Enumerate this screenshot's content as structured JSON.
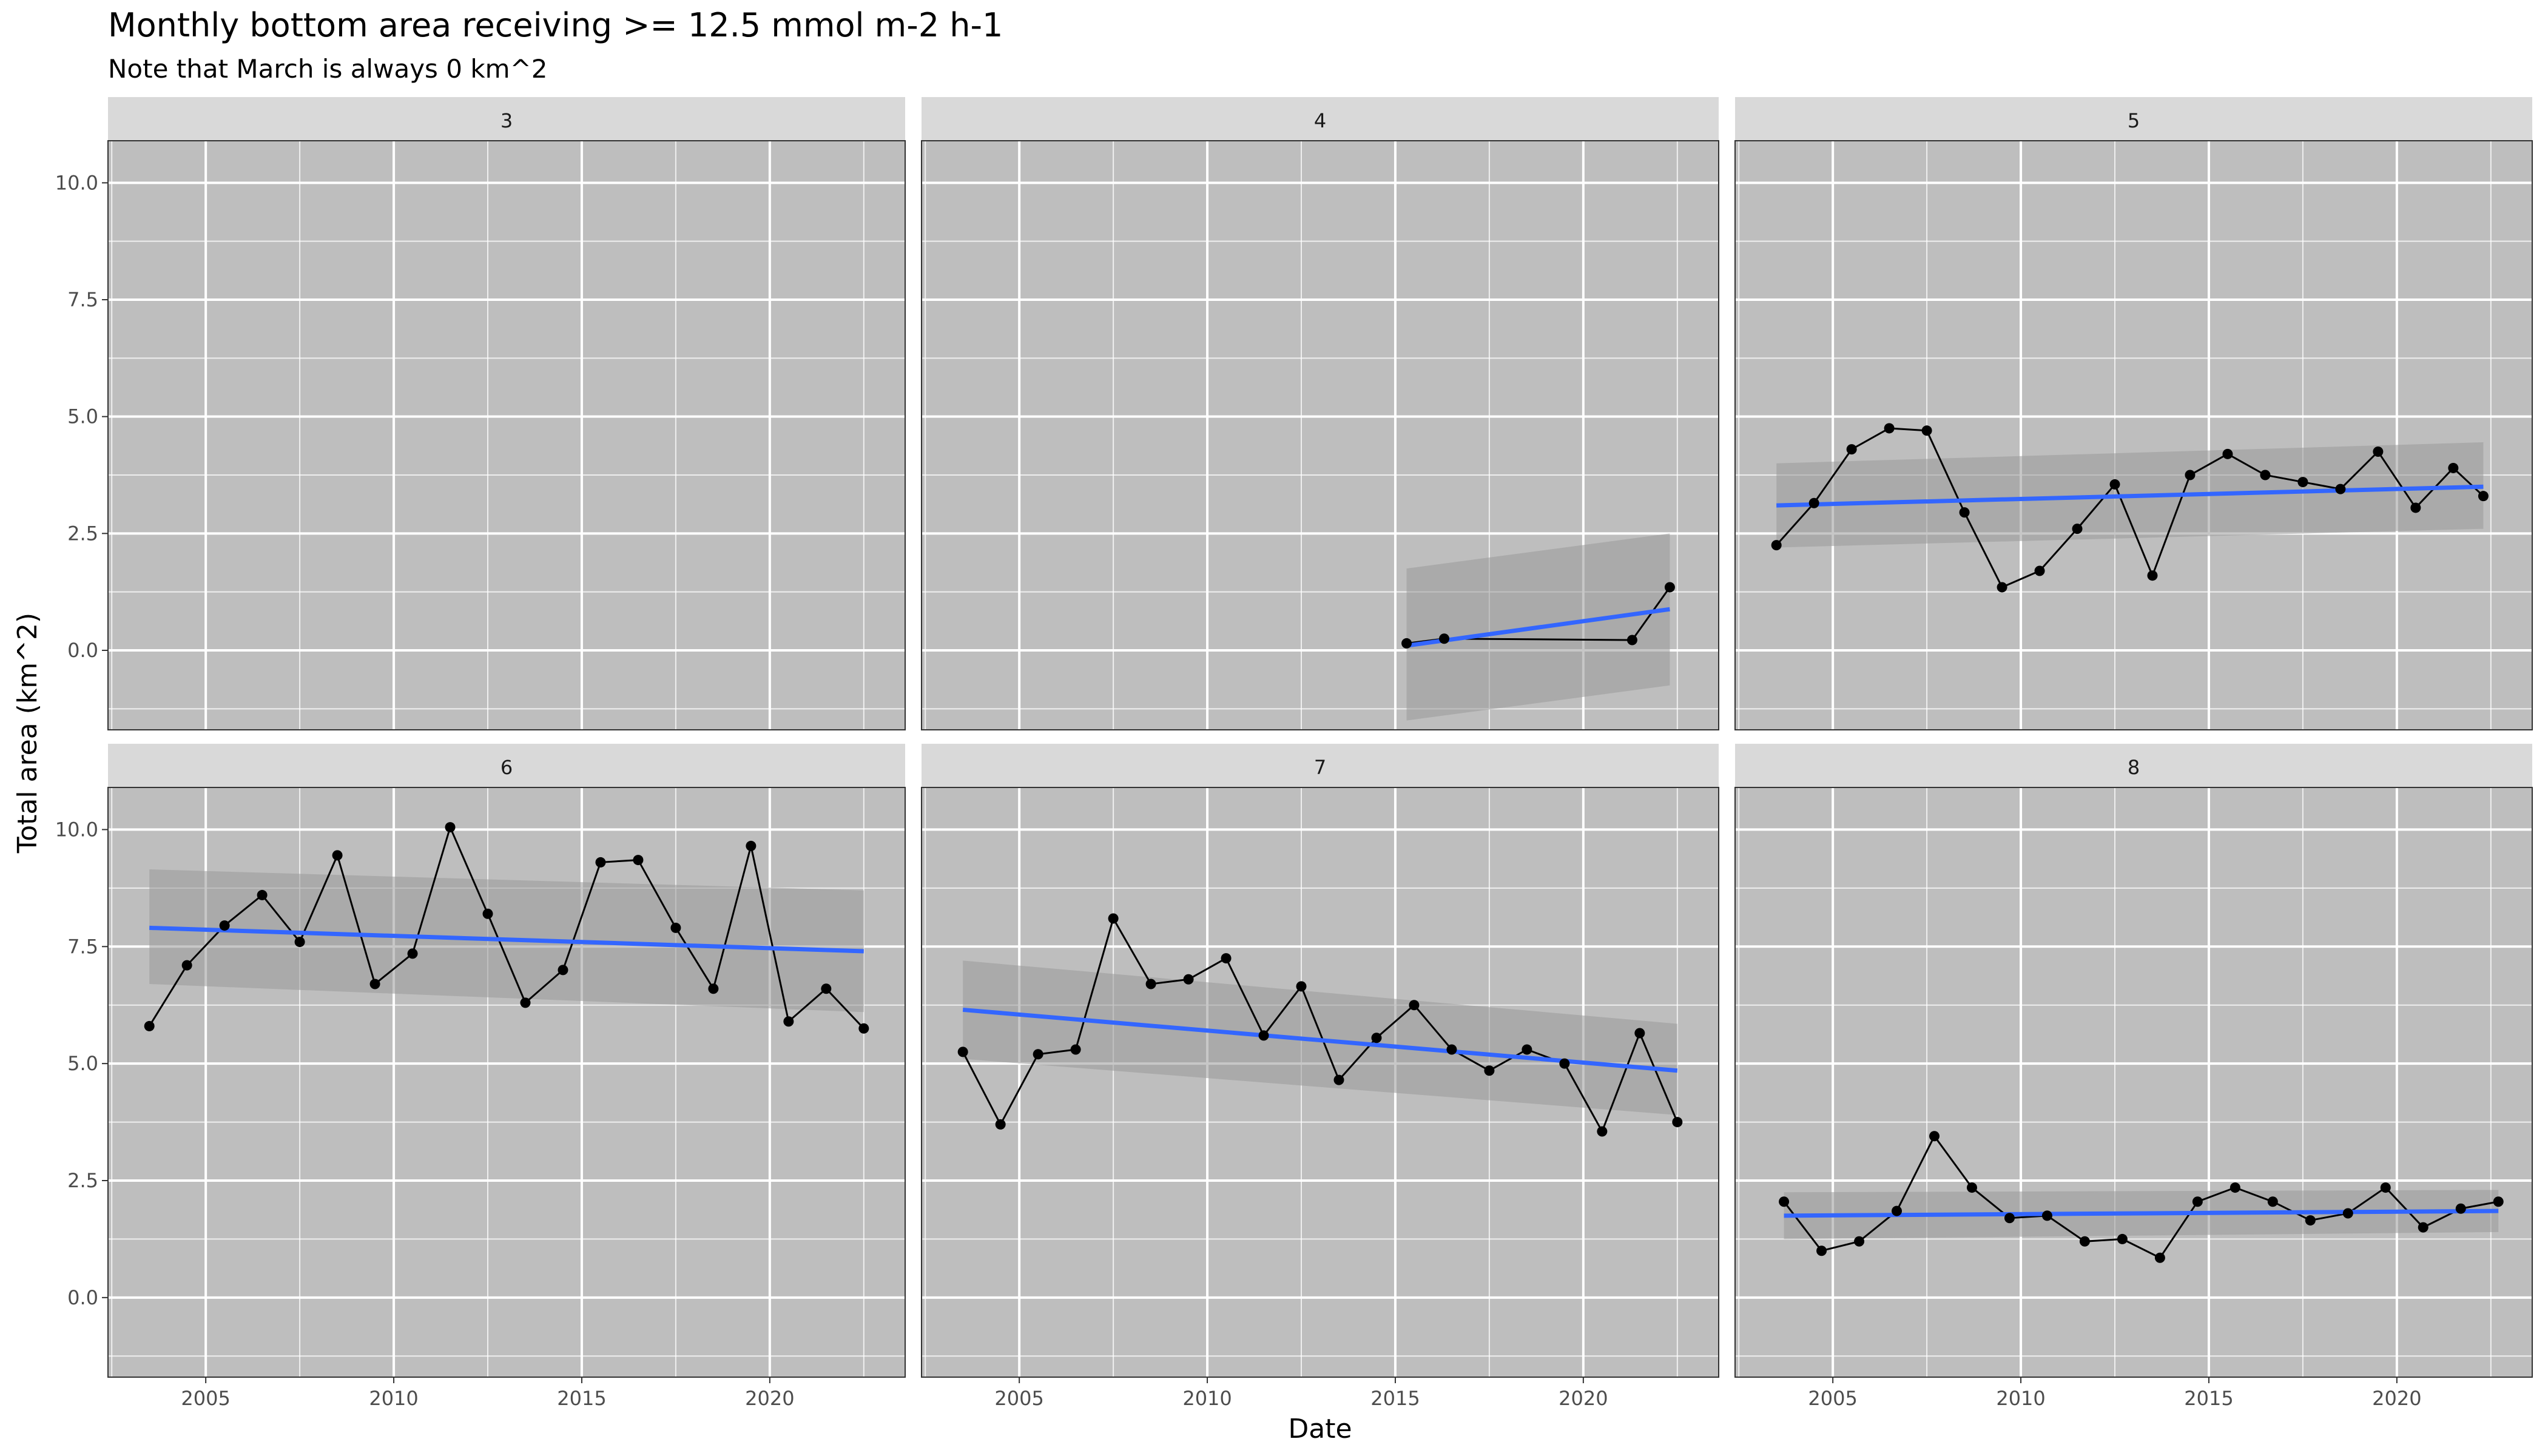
{
  "chart_data": {
    "type": "line",
    "title": "Monthly bottom area receiving >= 12.5 mmol m-2 h-1",
    "subtitle": "Note that March is always 0 km^2",
    "xlabel": "Date",
    "ylabel": "Total area (km^2)",
    "xlim": [
      2002.4,
      2023.6
    ],
    "ylim": [
      -1.7,
      10.9
    ],
    "x_ticks": [
      2005,
      2010,
      2015,
      2020
    ],
    "y_ticks": [
      0.0,
      2.5,
      5.0,
      7.5,
      10.0
    ],
    "x_tick_labels": [
      "2005",
      "2010",
      "2015",
      "2020"
    ],
    "y_tick_labels": [
      "0.0",
      "2.5",
      "5.0",
      "7.5",
      "10.0"
    ],
    "grid": true,
    "trend_color": "#3366ff",
    "panel_background": "#bebebe",
    "strip_background": "#d9d9d9",
    "panels": [
      {
        "label": "3",
        "x": [],
        "y": [],
        "trend": null
      },
      {
        "label": "4",
        "x": [
          2015.3,
          2016.3,
          2021.3,
          2022.3
        ],
        "y": [
          0.15,
          0.25,
          0.22,
          1.35
        ],
        "trend": {
          "x": [
            2015.3,
            2022.3
          ],
          "y": [
            0.1,
            0.88
          ],
          "ci_low": [
            -1.5,
            -0.75
          ],
          "ci_high": [
            1.75,
            2.5
          ]
        }
      },
      {
        "label": "5",
        "x": [
          2003.5,
          2004.5,
          2005.5,
          2006.5,
          2007.5,
          2008.5,
          2009.5,
          2010.5,
          2011.5,
          2012.5,
          2013.5,
          2014.5,
          2015.5,
          2016.5,
          2017.5,
          2018.5,
          2019.5,
          2020.5,
          2021.5,
          2022.3
        ],
        "y": [
          2.25,
          3.15,
          4.3,
          4.75,
          4.7,
          2.95,
          1.35,
          1.7,
          2.6,
          3.55,
          1.6,
          3.75,
          4.2,
          3.75,
          3.6,
          3.45,
          4.25,
          3.05,
          3.9,
          3.3
        ],
        "trend": {
          "x": [
            2003.5,
            2022.3
          ],
          "y": [
            3.1,
            3.5
          ],
          "ci_low": [
            2.2,
            2.6
          ],
          "ci_high": [
            4.0,
            4.45
          ]
        }
      },
      {
        "label": "6",
        "x": [
          2003.5,
          2004.5,
          2005.5,
          2006.5,
          2007.5,
          2008.5,
          2009.5,
          2010.5,
          2011.5,
          2012.5,
          2013.5,
          2014.5,
          2015.5,
          2016.5,
          2017.5,
          2018.5,
          2019.5,
          2020.5,
          2021.5,
          2022.5
        ],
        "y": [
          5.8,
          7.1,
          7.95,
          8.6,
          7.6,
          9.45,
          6.7,
          7.35,
          10.05,
          8.2,
          6.3,
          7.0,
          9.3,
          9.35,
          7.9,
          6.6,
          9.65,
          5.9,
          6.6,
          5.75
        ],
        "trend": {
          "x": [
            2003.5,
            2022.5
          ],
          "y": [
            7.9,
            7.4
          ],
          "ci_low": [
            6.7,
            6.1
          ],
          "ci_high": [
            9.15,
            8.7
          ]
        }
      },
      {
        "label": "7",
        "x": [
          2003.5,
          2004.5,
          2005.5,
          2006.5,
          2007.5,
          2008.5,
          2009.5,
          2010.5,
          2011.5,
          2012.5,
          2013.5,
          2014.5,
          2015.5,
          2016.5,
          2017.5,
          2018.5,
          2019.5,
          2020.5,
          2021.5,
          2022.5
        ],
        "y": [
          5.25,
          3.7,
          5.2,
          5.3,
          8.1,
          6.7,
          6.8,
          7.25,
          5.6,
          6.65,
          4.65,
          5.55,
          6.25,
          5.3,
          4.85,
          5.3,
          5.0,
          3.55,
          5.65,
          3.75
        ],
        "trend": {
          "x": [
            2003.5,
            2022.5
          ],
          "y": [
            6.15,
            4.85
          ],
          "ci_low": [
            5.1,
            3.9
          ],
          "ci_high": [
            7.2,
            5.85
          ]
        }
      },
      {
        "label": "8",
        "x": [
          2003.7,
          2004.7,
          2005.7,
          2006.7,
          2007.7,
          2008.7,
          2009.7,
          2010.7,
          2011.7,
          2012.7,
          2013.7,
          2014.7,
          2015.7,
          2016.7,
          2017.7,
          2018.7,
          2019.7,
          2020.7,
          2021.7,
          2022.7
        ],
        "y": [
          2.05,
          1.0,
          1.2,
          1.85,
          3.45,
          2.35,
          1.7,
          1.75,
          1.2,
          1.25,
          0.85,
          2.05,
          2.35,
          2.05,
          1.65,
          1.8,
          2.35,
          1.5,
          1.9,
          2.05
        ],
        "trend": {
          "x": [
            2003.7,
            2022.7
          ],
          "y": [
            1.75,
            1.85
          ],
          "ci_low": [
            1.25,
            1.4
          ],
          "ci_high": [
            2.25,
            2.3
          ]
        }
      }
    ]
  }
}
